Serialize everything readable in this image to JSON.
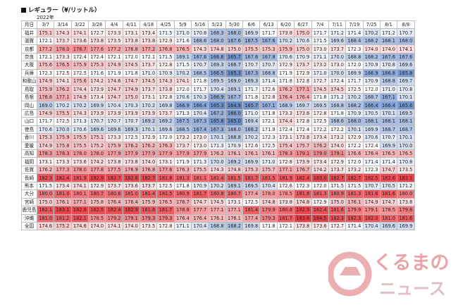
{
  "header": {
    "title": "レギュラー（¥/リットル）",
    "year_label": "2022年",
    "corner_label": "月日"
  },
  "watermark": {
    "logo_text_top": "くるまの",
    "logo_text_bottom": "ニュース"
  },
  "colors": {
    "low": "#5b82c6",
    "mid": "#ffffff",
    "high": "#ea3c44"
  },
  "chart_data": {
    "type": "table",
    "title": "レギュラー（¥/リットル）",
    "color_scale": {
      "min": 164.5,
      "mid": 172.0,
      "max": 183.5
    },
    "dates": [
      "3/7",
      "3/14",
      "3/22",
      "3/28",
      "4/4",
      "4/11",
      "4/18",
      "4/25",
      "5/9",
      "5/16",
      "5/23",
      "5/30",
      "6/6",
      "6/13",
      "6/20",
      "6/27",
      "7/4",
      "7/11",
      "7/19",
      "7/25",
      "8/1",
      "8/8"
    ],
    "rows": [
      {
        "name": "福井",
        "values": [
          "175.1",
          "174.3",
          "174.1",
          "172.7",
          "173.3",
          "173.1",
          "173.4",
          "171.5",
          "171.0",
          "170.8",
          "168.3",
          "168.0",
          "169.9",
          "171.7",
          "173.8",
          "175.0",
          "171.7",
          "171.2",
          "171.4",
          "170.2",
          "171.2",
          "170.7"
        ]
      },
      {
        "name": "滋賀",
        "values": [
          "172.1",
          "173.7",
          "173.6",
          "173.8",
          "173.5",
          "173.8",
          "173.8",
          "172.9",
          "171.6",
          "168.6",
          "168.0",
          "167.6",
          "167.5",
          "167.6",
          "170.2",
          "170.6",
          "171.5",
          "169.6",
          "168.4",
          "168.2",
          "168.1",
          "168.0"
        ]
      },
      {
        "name": "京都",
        "values": [
          "177.2",
          "178.0",
          "178.7",
          "177.6",
          "177.2",
          "176.8",
          "177.2",
          "176.8",
          "176.5",
          "174.3",
          "174.8",
          "175.0",
          "175.5",
          "175.3",
          "175.9",
          "175.0",
          "173.0",
          "173.7",
          "172.3",
          "174.0",
          "174.0",
          "174.1"
        ]
      },
      {
        "name": "奈良",
        "values": [
          "172.1",
          "173.3",
          "172.4",
          "172.4",
          "172.1",
          "172.0",
          "172.1",
          "171.5",
          "169.1",
          "167.6",
          "166.6",
          "165.7",
          "167.6",
          "167.8",
          "170.6",
          "170.9",
          "171.1",
          "170.0",
          "168.8",
          "168.2",
          "167.6",
          "167.6"
        ]
      },
      {
        "name": "大阪",
        "values": [
          "175.6",
          "176.5",
          "175.9",
          "175.3",
          "174.9",
          "174.5",
          "173.7",
          "172.8",
          "171.5",
          "170.7",
          "169.3",
          "168.7",
          "170.7",
          "170.7",
          "172.9",
          "173.7",
          "173.2",
          "173.0",
          "172.0",
          "170.9",
          "170.8",
          "169.6"
        ]
      },
      {
        "name": "兵庫",
        "values": [
          "172.3",
          "172.5",
          "172.5",
          "171.6",
          "171.9",
          "171.8",
          "171.0",
          "170.9",
          "170.2",
          "168.5",
          "166.5",
          "165.3",
          "167.3",
          "168.8",
          "171.9",
          "172.9",
          "171.0",
          "170.0",
          "169.9",
          "166.9",
          "166.8",
          "165.8"
        ]
      },
      {
        "name": "和歌山",
        "values": [
          "174.9",
          "174.1",
          "175.6",
          "174.2",
          "174.6",
          "174.7",
          "174.5",
          "174.3",
          "174.1",
          "171.8",
          "169.5",
          "169.0",
          "169.3",
          "171.4",
          "171.8",
          "172.8",
          "172.7",
          "172.4",
          "171.7",
          "170.9",
          "168.8",
          "169.7"
        ]
      },
      {
        "name": "鳥取",
        "values": [
          "175.9",
          "176.2",
          "174.4",
          "173.9",
          "174.7",
          "174.9",
          "173.7",
          "173.8",
          "172.0",
          "171.7",
          "170.4",
          "169.1",
          "171.7",
          "172.6",
          "176.2",
          "177.1",
          "174.5",
          "174.5",
          "172.5",
          "172.0",
          "171.0",
          "170.8"
        ]
      },
      {
        "name": "島根",
        "values": [
          "176.8",
          "177.1",
          "174.9",
          "173.4",
          "174.7",
          "175.0",
          "173.1",
          "172.8",
          "170.6",
          "170.3",
          "166.9",
          "167.7",
          "171.8",
          "172.8",
          "176.4",
          "176.4",
          "171.8",
          "171.2",
          "170.2",
          "168.7",
          "167.1",
          "170.1"
        ]
      },
      {
        "name": "岡山",
        "values": [
          "169.0",
          "170.2",
          "170.2",
          "169.9",
          "170.4",
          "170.3",
          "170.2",
          "169.8",
          "166.9",
          "166.4",
          "165.3",
          "164.9",
          "165.7",
          "167.1",
          "168.9",
          "169.7",
          "169.5",
          "168.8",
          "168.2",
          "166.4",
          "166.4",
          "165.6"
        ]
      },
      {
        "name": "広島",
        "values": [
          "174.9",
          "175.5",
          "174.3",
          "173.9",
          "173.9",
          "173.9",
          "173.9",
          "173.7",
          "171.3",
          "170.4",
          "167.2",
          "166.0",
          "171.0",
          "171.8",
          "173.3",
          "173.6",
          "172.8",
          "171.8",
          "170.9",
          "170.5",
          "170.1",
          "169.5"
        ]
      },
      {
        "name": "山口",
        "values": [
          "171.7",
          "172.5",
          "171.3",
          "170.7",
          "170.7",
          "170.7",
          "169.2",
          "169.2",
          "167.5",
          "167.3",
          "165.8",
          "165.0",
          "169.4",
          "172.1",
          "174.4",
          "172.8",
          "172.5",
          "168.6",
          "168.0",
          "168.1",
          "168.1",
          "168.1"
        ]
      },
      {
        "name": "徳島",
        "values": [
          "170.6",
          "170.0",
          "170.6",
          "169.6",
          "169.6",
          "169.3",
          "170.1",
          "169.6",
          "168.5",
          "167.4",
          "167.3",
          "168.0",
          "168.2",
          "171.9",
          "172.4",
          "172.4",
          "172.2",
          "172.2",
          "170.1",
          "169.9",
          "168.7",
          "168.7"
        ]
      },
      {
        "name": "香川",
        "values": [
          "175.3",
          "175.9",
          "175.5",
          "175.1",
          "173.3",
          "172.5",
          "172.9",
          "172.0",
          "173.2",
          "173.0",
          "170.1",
          "168.8",
          "170.2",
          "172.3",
          "173.1",
          "173.8",
          "173.4",
          "173.2",
          "172.9",
          "170.6",
          "170.7",
          "170.1"
        ]
      },
      {
        "name": "愛媛",
        "values": [
          "174.9",
          "175.8",
          "175.5",
          "175.2",
          "175.9",
          "176.2",
          "176.2",
          "176.3",
          "173.7",
          "173.0",
          "171.3",
          "170.9",
          "172.6",
          "172.5",
          "175.4",
          "175.7",
          "176.2",
          "174.0",
          "172.2",
          "172.4",
          "169.9",
          "170.0"
        ]
      },
      {
        "name": "高知",
        "values": [
          "178.3",
          "178.3",
          "178.0",
          "178.0",
          "177.9",
          "177.9",
          "177.9",
          "177.9",
          "177.9",
          "177.9",
          "176.2",
          "176.1",
          "176.1",
          "176.1",
          "178.3",
          "179.1",
          "179.0",
          "179.1",
          "176.6",
          "176.4",
          "176.5",
          "176.5"
        ]
      },
      {
        "name": "福岡",
        "values": [
          "173.1",
          "173.3",
          "173.6",
          "174.2",
          "173.8",
          "173.8",
          "174.0",
          "173.1",
          "171.9",
          "171.3",
          "170.0",
          "169.2",
          "169.9",
          "171.0",
          "172.8",
          "173.9",
          "173.4",
          "172.9",
          "172.0",
          "171.4",
          "171.4",
          "170.8"
        ]
      },
      {
        "name": "佐賀",
        "values": [
          "176.2",
          "177.3",
          "178.0",
          "177.8",
          "177.5",
          "176.9",
          "176.8",
          "177.6",
          "176.3",
          "175.5",
          "174.3",
          "174.8",
          "175.3",
          "175.7",
          "177.1",
          "176.7",
          "174.2",
          "173.7",
          "173.2",
          "172.3",
          "174.7",
          "173.5"
        ]
      },
      {
        "name": "長崎",
        "values": [
          "182.3",
          "182.4",
          "181.9",
          "182.9",
          "182.7",
          "182.8",
          "182.7",
          "181.8",
          "181.3",
          "181.1",
          "181.4",
          "181.5",
          "181.7",
          "181.5",
          "181.9",
          "182.4",
          "183.0",
          "182.7",
          "182.7",
          "182.5",
          "182.6",
          "183.1"
        ]
      },
      {
        "name": "熊本",
        "values": [
          "171.5",
          "173.4",
          "174.1",
          "172.9",
          "173.7",
          "173.6",
          "173.7",
          "172.5",
          "171.8",
          "170.9",
          "170.2",
          "169.1",
          "169.5",
          "170.4",
          "172.6",
          "172.3",
          "172.0",
          "171.5",
          "171.5",
          "170.7",
          "170.5",
          "171.2"
        ]
      },
      {
        "name": "大分",
        "values": [
          "180.0",
          "181.0",
          "180.1",
          "180.7",
          "180.6",
          "181.0",
          "181.4",
          "181.5",
          "180.9",
          "181.7",
          "180.8",
          "180.7",
          "177.4",
          "178.0",
          "178.5",
          "181.8",
          "181.3",
          "180.9",
          "181.3",
          "181.6",
          "181.6",
          "180.0"
        ]
      },
      {
        "name": "宮崎",
        "values": [
          "175.0",
          "176.1",
          "177.1",
          "175.8",
          "176.4",
          "176.4",
          "175.9",
          "176.5",
          "176.7",
          "174.7",
          "174.5",
          "173.1",
          "172.5",
          "174.8",
          "173.8",
          "174.8",
          "172.9",
          "175.0",
          "176.1",
          "174.9",
          "174.7",
          "173.8"
        ]
      },
      {
        "name": "鹿児島",
        "values": [
          "182.1",
          "183.1",
          "182.8",
          "182.5",
          "182.4",
          "182.9",
          "181.8",
          "181.7",
          "178.8",
          "177.7",
          "177.1",
          "177.1",
          "181.4",
          "179.9",
          "180.8",
          "182.9",
          "182.4",
          "181.6",
          "179.9",
          "179.1",
          "178.5",
          "179.8"
        ]
      },
      {
        "name": "沖縄",
        "values": [
          "181.0",
          "181.2",
          "182.1",
          "178.5",
          "179.2",
          "179.1",
          "179.3",
          "179.3",
          "176.4",
          "176.4",
          "176.1",
          "176.1",
          "177.4",
          "179.3",
          "181.7",
          "183.8",
          "184.5",
          "182.3",
          "182.3",
          "182.0",
          "181.0",
          "181.6"
        ]
      },
      {
        "name": "全国",
        "values": [
          "174.6",
          "175.2",
          "174.6",
          "174.0",
          "174.1",
          "174.0",
          "173.5",
          "172.8",
          "171.1",
          "170.4",
          "168.8",
          "168.2",
          "169.8",
          "171.8",
          "172.1",
          "173.8",
          "173.6",
          "172.7",
          "171.4",
          "170.4",
          "169.6",
          "169.9"
        ]
      }
    ]
  }
}
